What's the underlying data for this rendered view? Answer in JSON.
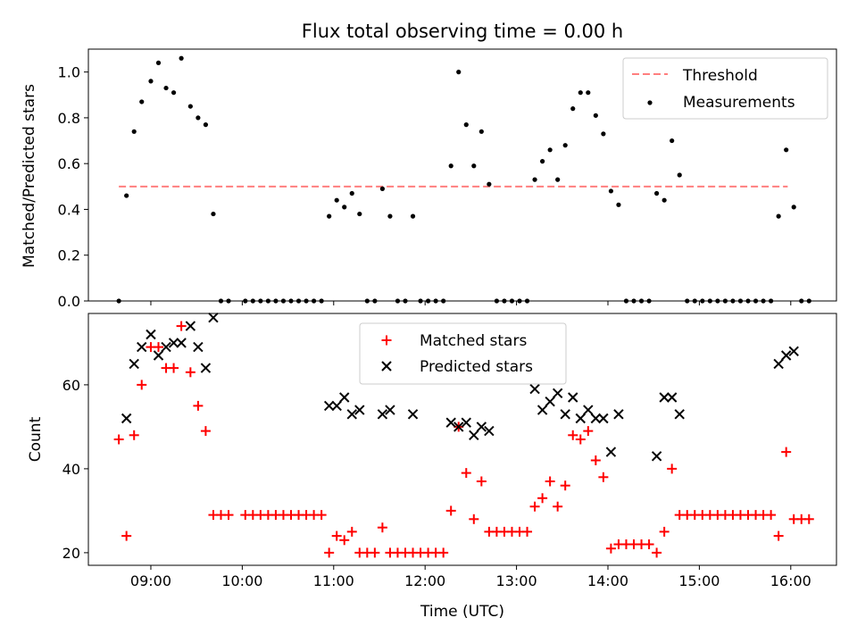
{
  "title": "Flux total observing time = 0.00 h",
  "colors": {
    "threshold": "#ff7f7f",
    "measurement": "#000000",
    "matched": "#ff0000",
    "predicted": "#000000"
  },
  "chart_data": [
    {
      "type": "scatter",
      "panel": "top",
      "ylabel": "Matched/Predicted stars",
      "ylim": [
        0,
        1.1
      ],
      "xlim": [
        "08:19",
        "16:30"
      ],
      "yticks": [
        "0.0",
        "0.2",
        "0.4",
        "0.6",
        "0.8",
        "1.0"
      ],
      "legend": {
        "placement": "top-right",
        "entries": [
          "Threshold",
          "Measurements"
        ]
      },
      "threshold": {
        "name": "Threshold",
        "value": 0.5,
        "x_start": "08:39",
        "x_end": "15:58"
      },
      "series": [
        {
          "name": "Measurements",
          "points": [
            [
              "08:39",
              0.0
            ],
            [
              "08:44",
              0.46
            ],
            [
              "08:49",
              0.74
            ],
            [
              "08:54",
              0.87
            ],
            [
              "09:00",
              0.96
            ],
            [
              "09:05",
              1.04
            ],
            [
              "09:10",
              0.93
            ],
            [
              "09:15",
              0.91
            ],
            [
              "09:20",
              1.06
            ],
            [
              "09:26",
              0.85
            ],
            [
              "09:31",
              0.8
            ],
            [
              "09:36",
              0.77
            ],
            [
              "09:41",
              0.38
            ],
            [
              "09:46",
              0.0
            ],
            [
              "09:51",
              0.0
            ],
            [
              "10:02",
              0.0
            ],
            [
              "10:07",
              0.0
            ],
            [
              "10:12",
              0.0
            ],
            [
              "10:17",
              0.0
            ],
            [
              "10:22",
              0.0
            ],
            [
              "10:27",
              0.0
            ],
            [
              "10:32",
              0.0
            ],
            [
              "10:37",
              0.0
            ],
            [
              "10:42",
              0.0
            ],
            [
              "10:47",
              0.0
            ],
            [
              "10:52",
              0.0
            ],
            [
              "10:57",
              0.37
            ],
            [
              "11:02",
              0.44
            ],
            [
              "11:07",
              0.41
            ],
            [
              "11:12",
              0.47
            ],
            [
              "11:17",
              0.38
            ],
            [
              "11:22",
              0.0
            ],
            [
              "11:27",
              0.0
            ],
            [
              "11:32",
              0.49
            ],
            [
              "11:37",
              0.37
            ],
            [
              "11:42",
              0.0
            ],
            [
              "11:47",
              0.0
            ],
            [
              "11:52",
              0.37
            ],
            [
              "11:57",
              0.0
            ],
            [
              "12:02",
              0.0
            ],
            [
              "12:07",
              0.0
            ],
            [
              "12:12",
              0.0
            ],
            [
              "12:17",
              0.59
            ],
            [
              "12:22",
              1.0
            ],
            [
              "12:27",
              0.77
            ],
            [
              "12:32",
              0.59
            ],
            [
              "12:37",
              0.74
            ],
            [
              "12:42",
              0.51
            ],
            [
              "12:47",
              0.0
            ],
            [
              "12:52",
              0.0
            ],
            [
              "12:57",
              0.0
            ],
            [
              "13:02",
              0.0
            ],
            [
              "13:07",
              0.0
            ],
            [
              "13:12",
              0.53
            ],
            [
              "13:17",
              0.61
            ],
            [
              "13:22",
              0.66
            ],
            [
              "13:27",
              0.53
            ],
            [
              "13:32",
              0.68
            ],
            [
              "13:37",
              0.84
            ],
            [
              "13:42",
              0.91
            ],
            [
              "13:47",
              0.91
            ],
            [
              "13:52",
              0.81
            ],
            [
              "13:57",
              0.73
            ],
            [
              "14:02",
              0.48
            ],
            [
              "14:07",
              0.42
            ],
            [
              "14:12",
              0.0
            ],
            [
              "14:17",
              0.0
            ],
            [
              "14:22",
              0.0
            ],
            [
              "14:27",
              0.0
            ],
            [
              "14:32",
              0.47
            ],
            [
              "14:37",
              0.44
            ],
            [
              "14:42",
              0.7
            ],
            [
              "14:47",
              0.55
            ],
            [
              "14:52",
              0.0
            ],
            [
              "14:57",
              0.0
            ],
            [
              "15:02",
              0.0
            ],
            [
              "15:07",
              0.0
            ],
            [
              "15:12",
              0.0
            ],
            [
              "15:17",
              0.0
            ],
            [
              "15:22",
              0.0
            ],
            [
              "15:27",
              0.0
            ],
            [
              "15:32",
              0.0
            ],
            [
              "15:37",
              0.0
            ],
            [
              "15:42",
              0.0
            ],
            [
              "15:47",
              0.0
            ],
            [
              "15:52",
              0.37
            ],
            [
              "15:57",
              0.66
            ],
            [
              "16:02",
              0.41
            ],
            [
              "16:07",
              0.0
            ],
            [
              "16:12",
              0.0
            ]
          ]
        }
      ]
    },
    {
      "type": "scatter",
      "panel": "bottom",
      "xlabel": "Time (UTC)",
      "ylabel": "Count",
      "ylim": [
        17,
        77
      ],
      "xlim": [
        "08:19",
        "16:30"
      ],
      "yticks": [
        "20",
        "40",
        "60"
      ],
      "xticks": [
        "09:00",
        "10:00",
        "11:00",
        "12:00",
        "13:00",
        "14:00",
        "15:00",
        "16:00"
      ],
      "legend": {
        "placement": "top-center",
        "entries": [
          "Matched stars",
          "Predicted stars"
        ]
      },
      "series": [
        {
          "name": "Matched stars",
          "marker": "plus",
          "points": [
            [
              "08:39",
              47
            ],
            [
              "08:44",
              24
            ],
            [
              "08:49",
              48
            ],
            [
              "08:54",
              60
            ],
            [
              "09:00",
              69
            ],
            [
              "09:05",
              69
            ],
            [
              "09:10",
              64
            ],
            [
              "09:15",
              64
            ],
            [
              "09:20",
              74
            ],
            [
              "09:26",
              63
            ],
            [
              "09:31",
              55
            ],
            [
              "09:36",
              49
            ],
            [
              "09:41",
              29
            ],
            [
              "09:46",
              29
            ],
            [
              "09:51",
              29
            ],
            [
              "10:02",
              29
            ],
            [
              "10:07",
              29
            ],
            [
              "10:12",
              29
            ],
            [
              "10:17",
              29
            ],
            [
              "10:22",
              29
            ],
            [
              "10:27",
              29
            ],
            [
              "10:32",
              29
            ],
            [
              "10:37",
              29
            ],
            [
              "10:42",
              29
            ],
            [
              "10:47",
              29
            ],
            [
              "10:52",
              29
            ],
            [
              "10:57",
              20
            ],
            [
              "11:02",
              24
            ],
            [
              "11:07",
              23
            ],
            [
              "11:12",
              25
            ],
            [
              "11:17",
              20
            ],
            [
              "11:22",
              20
            ],
            [
              "11:27",
              20
            ],
            [
              "11:32",
              26
            ],
            [
              "11:37",
              20
            ],
            [
              "11:42",
              20
            ],
            [
              "11:47",
              20
            ],
            [
              "11:52",
              20
            ],
            [
              "11:57",
              20
            ],
            [
              "12:02",
              20
            ],
            [
              "12:07",
              20
            ],
            [
              "12:12",
              20
            ],
            [
              "12:17",
              30
            ],
            [
              "12:22",
              50
            ],
            [
              "12:27",
              39
            ],
            [
              "12:32",
              28
            ],
            [
              "12:37",
              37
            ],
            [
              "12:42",
              25
            ],
            [
              "12:47",
              25
            ],
            [
              "12:52",
              25
            ],
            [
              "12:57",
              25
            ],
            [
              "13:02",
              25
            ],
            [
              "13:07",
              25
            ],
            [
              "13:12",
              31
            ],
            [
              "13:17",
              33
            ],
            [
              "13:22",
              37
            ],
            [
              "13:27",
              31
            ],
            [
              "13:32",
              36
            ],
            [
              "13:37",
              48
            ],
            [
              "13:42",
              47
            ],
            [
              "13:47",
              49
            ],
            [
              "13:52",
              42
            ],
            [
              "13:57",
              38
            ],
            [
              "14:02",
              21
            ],
            [
              "14:07",
              22
            ],
            [
              "14:12",
              22
            ],
            [
              "14:17",
              22
            ],
            [
              "14:22",
              22
            ],
            [
              "14:27",
              22
            ],
            [
              "14:32",
              20
            ],
            [
              "14:37",
              25
            ],
            [
              "14:42",
              40
            ],
            [
              "14:47",
              29
            ],
            [
              "14:52",
              29
            ],
            [
              "14:57",
              29
            ],
            [
              "15:02",
              29
            ],
            [
              "15:07",
              29
            ],
            [
              "15:12",
              29
            ],
            [
              "15:17",
              29
            ],
            [
              "15:22",
              29
            ],
            [
              "15:27",
              29
            ],
            [
              "15:32",
              29
            ],
            [
              "15:37",
              29
            ],
            [
              "15:42",
              29
            ],
            [
              "15:47",
              29
            ],
            [
              "15:52",
              24
            ],
            [
              "15:57",
              44
            ],
            [
              "16:02",
              28
            ],
            [
              "16:07",
              28
            ],
            [
              "16:12",
              28
            ]
          ]
        },
        {
          "name": "Predicted stars",
          "marker": "x",
          "points": [
            [
              "08:44",
              52
            ],
            [
              "08:49",
              65
            ],
            [
              "08:54",
              69
            ],
            [
              "09:00",
              72
            ],
            [
              "09:05",
              67
            ],
            [
              "09:10",
              69
            ],
            [
              "09:15",
              70
            ],
            [
              "09:20",
              70
            ],
            [
              "09:26",
              74
            ],
            [
              "09:31",
              69
            ],
            [
              "09:36",
              64
            ],
            [
              "09:41",
              76
            ],
            [
              "10:57",
              55
            ],
            [
              "11:02",
              55
            ],
            [
              "11:07",
              57
            ],
            [
              "11:12",
              53
            ],
            [
              "11:17",
              54
            ],
            [
              "11:32",
              53
            ],
            [
              "11:37",
              54
            ],
            [
              "11:52",
              53
            ],
            [
              "12:17",
              51
            ],
            [
              "12:22",
              50
            ],
            [
              "12:27",
              51
            ],
            [
              "12:32",
              48
            ],
            [
              "12:37",
              50
            ],
            [
              "12:42",
              49
            ],
            [
              "13:12",
              59
            ],
            [
              "13:17",
              54
            ],
            [
              "13:22",
              56
            ],
            [
              "13:27",
              58
            ],
            [
              "13:32",
              53
            ],
            [
              "13:37",
              57
            ],
            [
              "13:42",
              52
            ],
            [
              "13:47",
              54
            ],
            [
              "13:52",
              52
            ],
            [
              "13:57",
              52
            ],
            [
              "14:02",
              44
            ],
            [
              "14:07",
              53
            ],
            [
              "14:32",
              43
            ],
            [
              "14:37",
              57
            ],
            [
              "14:42",
              57
            ],
            [
              "14:47",
              53
            ],
            [
              "15:52",
              65
            ],
            [
              "15:57",
              67
            ],
            [
              "16:02",
              68
            ]
          ]
        }
      ]
    }
  ]
}
